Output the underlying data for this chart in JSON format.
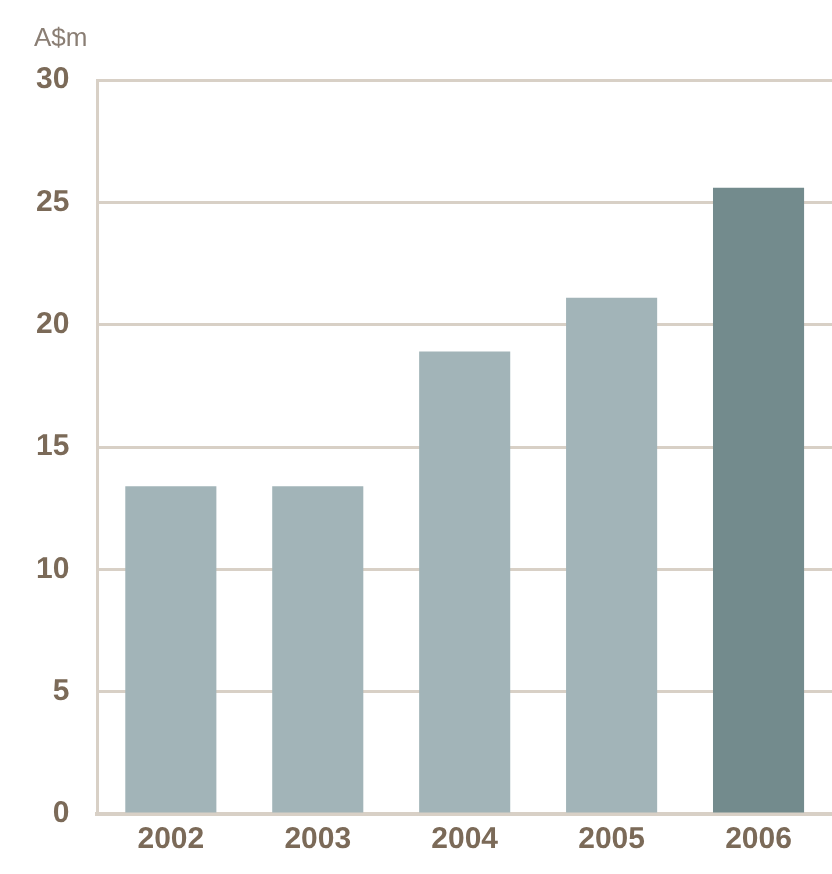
{
  "chart_data": {
    "type": "bar",
    "ylabel": "A$m",
    "categories": [
      "2002",
      "2003",
      "2004",
      "2005",
      "2006"
    ],
    "values": [
      13.4,
      13.4,
      18.9,
      21.1,
      25.6
    ],
    "colors": [
      "#a2b4b8",
      "#a2b4b8",
      "#a2b4b8",
      "#a2b4b8",
      "#738b8d"
    ],
    "ylim": [
      0,
      30
    ],
    "yticks": [
      0,
      5,
      10,
      15,
      20,
      25,
      30
    ],
    "grid": "y",
    "legend": false
  }
}
